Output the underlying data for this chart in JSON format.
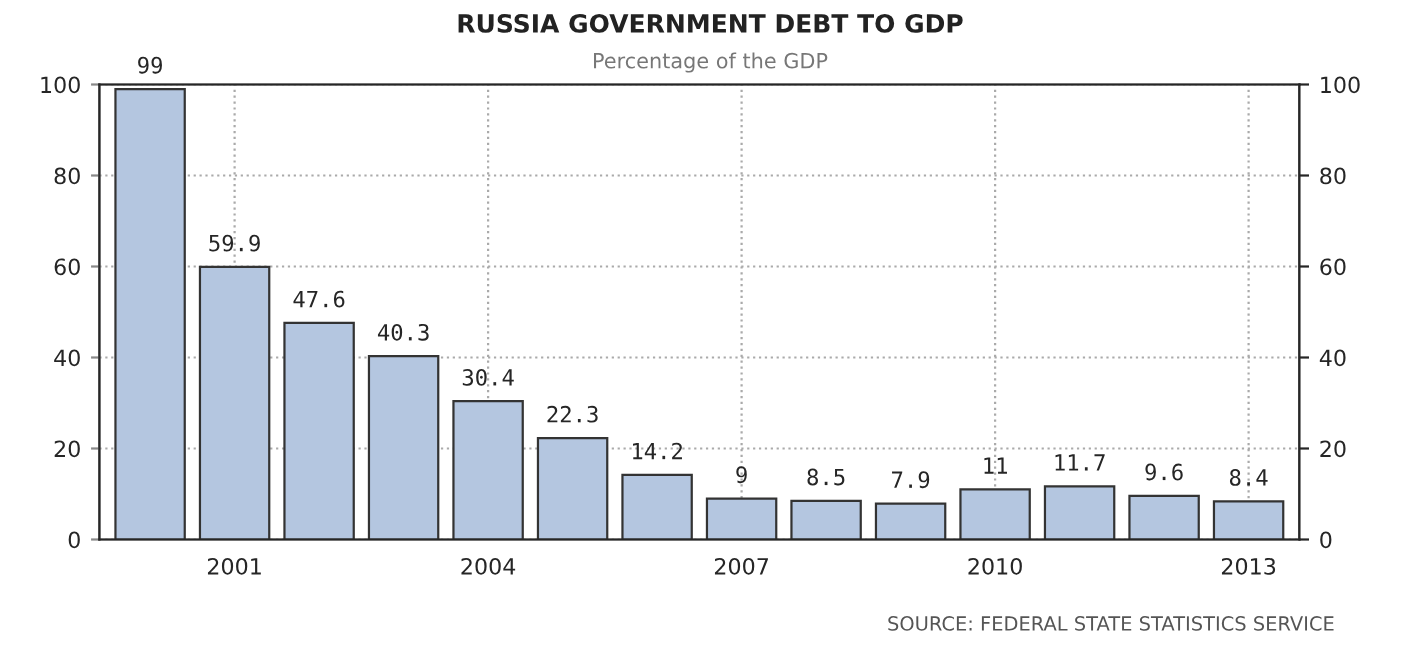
{
  "chart_data": {
    "type": "bar",
    "title": "RUSSIA GOVERNMENT DEBT TO GDP",
    "subtitle": "Percentage of the GDP",
    "categories": [
      null,
      "2001",
      null,
      null,
      "2004",
      null,
      null,
      "2007",
      null,
      null,
      "2010",
      null,
      null,
      "2013"
    ],
    "values": [
      99,
      59.9,
      47.6,
      40.3,
      30.4,
      22.3,
      14.2,
      9,
      8.5,
      7.9,
      11,
      11.7,
      9.6,
      8.4
    ],
    "color": "#b4c6e0",
    "data_labels": true,
    "ylim": [
      0,
      100
    ],
    "yticks": [
      0,
      20,
      40,
      60,
      80,
      100
    ],
    "y2lim": [
      0,
      100
    ],
    "y2ticks": [
      0,
      20,
      40,
      60,
      80,
      100
    ],
    "grid": true,
    "annotations": [
      "SOURCE: FEDERAL STATE STATISTICS SERVICE"
    ]
  }
}
